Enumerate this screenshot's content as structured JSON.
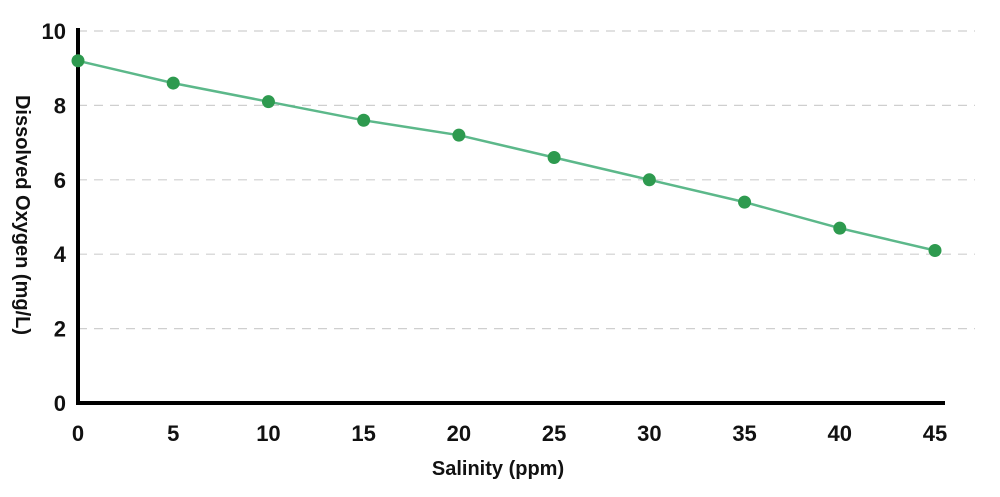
{
  "chart_data": {
    "type": "line",
    "title": "",
    "xlabel": "Salinity (ppm)",
    "ylabel": "Dissolved Oxygen (mg/L)",
    "xlim": [
      0,
      45
    ],
    "ylim": [
      0,
      10
    ],
    "x_ticks": [
      0,
      5,
      10,
      15,
      20,
      25,
      30,
      35,
      40,
      45
    ],
    "y_ticks": [
      0,
      2,
      4,
      6,
      8,
      10
    ],
    "grid": "horizontal dashed",
    "series": [
      {
        "x": [
          0,
          5,
          10,
          15,
          20,
          25,
          30,
          35,
          40,
          45
        ],
        "y": [
          9.2,
          8.6,
          8.1,
          7.6,
          7.2,
          6.6,
          6.0,
          5.4,
          4.7,
          4.1
        ],
        "line_color": "#5cb88a",
        "marker_color": "#2e9a4f"
      }
    ]
  }
}
